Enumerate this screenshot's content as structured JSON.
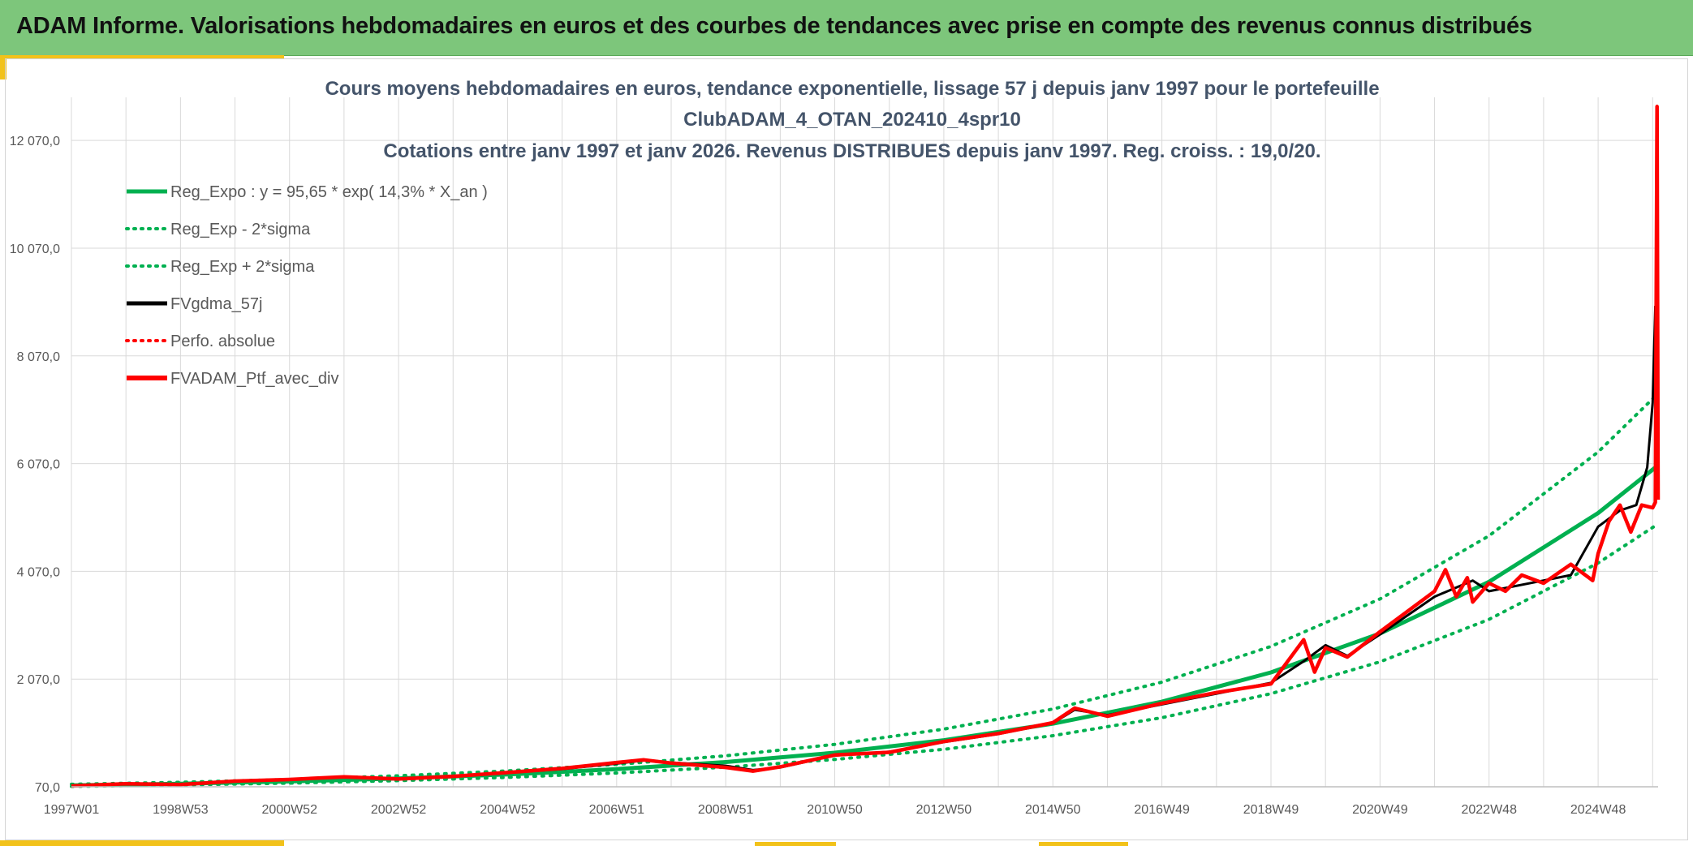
{
  "banner": {
    "title": "ADAM Informe. Valorisations hebdomadaires en euros et des courbes de tendances avec prise en compte des revenus connus distribués"
  },
  "colors": {
    "banner_bg": "#7dc67b",
    "accent": "#f2c21a",
    "reg_green": "#00b050",
    "fv_black": "#000000",
    "ptf_red": "#ff0000",
    "title_text": "#44546a",
    "gridline": "#d9d9d9"
  },
  "chart_data": {
    "type": "line",
    "title_lines": [
      "Cours moyens hebdomadaires en euros, tendance exponentielle, lissage 57 j depuis janv 1997 pour le portefeuille",
      "ClubADAM_4_OTAN_202410_4spr10",
      "Cotations entre janv 1997 et janv 2026. Revenus DISTRIBUES depuis janv 1997. Reg. croiss. : 19,0/20."
    ],
    "x_unit": "years since 1997W01",
    "x_range": [
      0,
      29.1
    ],
    "x_ticks": [
      {
        "label": "1997W01",
        "x": 0
      },
      {
        "label": "1998W53",
        "x": 2
      },
      {
        "label": "2000W52",
        "x": 4
      },
      {
        "label": "2002W52",
        "x": 6
      },
      {
        "label": "2004W52",
        "x": 8
      },
      {
        "label": "2006W51",
        "x": 10
      },
      {
        "label": "2008W51",
        "x": 12
      },
      {
        "label": "2010W50",
        "x": 14
      },
      {
        "label": "2012W50",
        "x": 16
      },
      {
        "label": "2014W50",
        "x": 18
      },
      {
        "label": "2016W49",
        "x": 20
      },
      {
        "label": "2018W49",
        "x": 22
      },
      {
        "label": "2020W49",
        "x": 24
      },
      {
        "label": "2022W48",
        "x": 26
      },
      {
        "label": "2024W48",
        "x": 28
      }
    ],
    "y_range": [
      70,
      12870
    ],
    "y_ticks": [
      {
        "label": "70,0",
        "y": 70
      },
      {
        "label": "2 070,0",
        "y": 2070
      },
      {
        "label": "4 070,0",
        "y": 4070
      },
      {
        "label": "6 070,0",
        "y": 6070
      },
      {
        "label": "8 070,0",
        "y": 8070
      },
      {
        "label": "10 070,0",
        "y": 10070
      },
      {
        "label": "12 070,0",
        "y": 12070
      }
    ],
    "grid": true,
    "legend_position": "top-left",
    "legend": [
      {
        "label": "Reg_Expo : y = 95,65 * exp( 14,3% *  X_an )",
        "color": "#00b050",
        "style": "solid"
      },
      {
        "label": "Reg_Exp - 2*sigma",
        "color": "#00b050",
        "style": "dotted"
      },
      {
        "label": "Reg_Exp + 2*sigma",
        "color": "#00b050",
        "style": "dotted"
      },
      {
        "label": "FVgdma_57j",
        "color": "#000000",
        "style": "solid"
      },
      {
        "label": "Perfo. absolue",
        "color": "#ff0000",
        "style": "dotted"
      },
      {
        "label": "FVADAM_Ptf_avec_div",
        "color": "#ff0000",
        "style": "solid-thick"
      }
    ],
    "regression": {
      "a": 95.65,
      "rate": 0.143
    },
    "series": [
      {
        "name": "Reg_Expo : y = 95,65 * exp( 14,3% *  X_an )",
        "x": [
          0,
          2,
          4,
          6,
          8,
          10,
          12,
          14,
          16,
          18,
          20,
          22,
          24,
          26,
          28,
          29.1
        ],
        "y": [
          96,
          127,
          169,
          225,
          299,
          398,
          529,
          703,
          934,
          1241,
          1650,
          2194,
          2916,
          3876,
          5153,
          6040
        ]
      },
      {
        "name": "Reg_Exp - 2*sigma",
        "x": [
          0,
          2,
          4,
          6,
          8,
          10,
          12,
          14,
          16,
          18,
          20,
          22,
          24,
          26,
          28,
          29.1
        ],
        "y": [
          78,
          104,
          138,
          184,
          245,
          326,
          434,
          577,
          766,
          1018,
          1353,
          1799,
          2391,
          3178,
          4225,
          4950
        ]
      },
      {
        "name": "Reg_Exp + 2*sigma",
        "x": [
          0,
          2,
          4,
          6,
          8,
          10,
          12,
          14,
          16,
          18,
          20,
          22,
          24,
          26,
          28,
          29.1
        ],
        "y": [
          117,
          155,
          206,
          275,
          365,
          486,
          645,
          858,
          1140,
          1514,
          2013,
          2677,
          3558,
          4729,
          6287,
          7370
        ]
      },
      {
        "name": "FVgdma_57j",
        "x": [
          0,
          1,
          2,
          3,
          4,
          5,
          6,
          7,
          8,
          9,
          10,
          10.5,
          11,
          12,
          12.5,
          13,
          14,
          15,
          16,
          17,
          18,
          18.4,
          19,
          20,
          21,
          22,
          22.6,
          23,
          23.4,
          24,
          25,
          25.7,
          26,
          27,
          27.5,
          28,
          28.4,
          28.7,
          28.9,
          29.0,
          29.05
        ],
        "y": [
          90,
          120,
          115,
          170,
          210,
          250,
          220,
          260,
          330,
          400,
          500,
          560,
          520,
          460,
          380,
          430,
          650,
          720,
          900,
          1050,
          1250,
          1500,
          1400,
          1600,
          1800,
          2000,
          2400,
          2700,
          2500,
          2900,
          3600,
          3900,
          3700,
          3900,
          4000,
          4900,
          5200,
          5300,
          6000,
          7200,
          9000
        ]
      },
      {
        "name": "FVADAM_Ptf_avec_div",
        "x": [
          0,
          1,
          2,
          3,
          4,
          5,
          6,
          7,
          8,
          9,
          10,
          10.5,
          11,
          12,
          12.5,
          13,
          14,
          15,
          16,
          17,
          18,
          18.4,
          19,
          20,
          21,
          22,
          22.6,
          22.8,
          23,
          23.4,
          24,
          25,
          25.2,
          25.4,
          25.6,
          25.7,
          26,
          26.3,
          26.6,
          27,
          27.5,
          27.9,
          28,
          28.2,
          28.4,
          28.6,
          28.8,
          29.0,
          29.05,
          29.08,
          29.1
        ],
        "y": [
          85,
          125,
          110,
          175,
          205,
          255,
          215,
          265,
          335,
          410,
          520,
          570,
          510,
          430,
          360,
          440,
          660,
          710,
          910,
          1060,
          1260,
          1530,
          1380,
          1620,
          1820,
          1980,
          2800,
          2200,
          2650,
          2480,
          2950,
          3700,
          4100,
          3600,
          3950,
          3500,
          3850,
          3700,
          4000,
          3850,
          4200,
          3900,
          4400,
          5000,
          5300,
          4800,
          5300,
          5250,
          5350,
          12700,
          5400
        ]
      }
    ]
  }
}
